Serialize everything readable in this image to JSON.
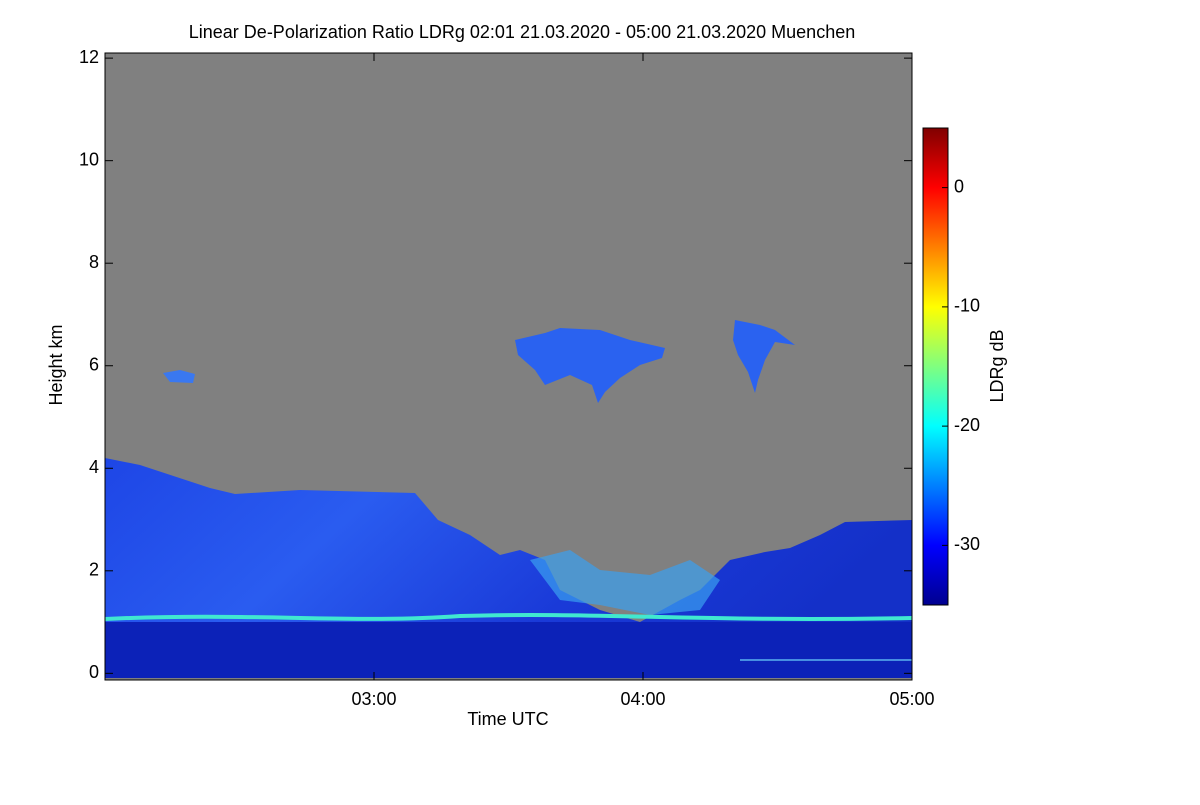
{
  "chart_data": {
    "type": "heatmap",
    "title": "Linear De-Polarization Ratio LDRg   02:01 21.03.2020 - 05:00 21.03.2020 Muenchen",
    "x_label": "Time UTC",
    "y_label": "Height km",
    "xlim": [
      2.0,
      5.0
    ],
    "xticks": [
      {
        "value": 3,
        "label": "03:00"
      },
      {
        "value": 4,
        "label": "04:00"
      },
      {
        "value": 5,
        "label": "05:00"
      }
    ],
    "ylim": [
      -0.13,
      12.1
    ],
    "yticks": [
      0,
      2,
      4,
      6,
      8,
      10,
      12
    ],
    "colorbar": {
      "label": "LDRg dB",
      "lim": [
        -35,
        5
      ],
      "ticks": [
        0,
        -10,
        -20,
        -30
      ]
    }
  }
}
